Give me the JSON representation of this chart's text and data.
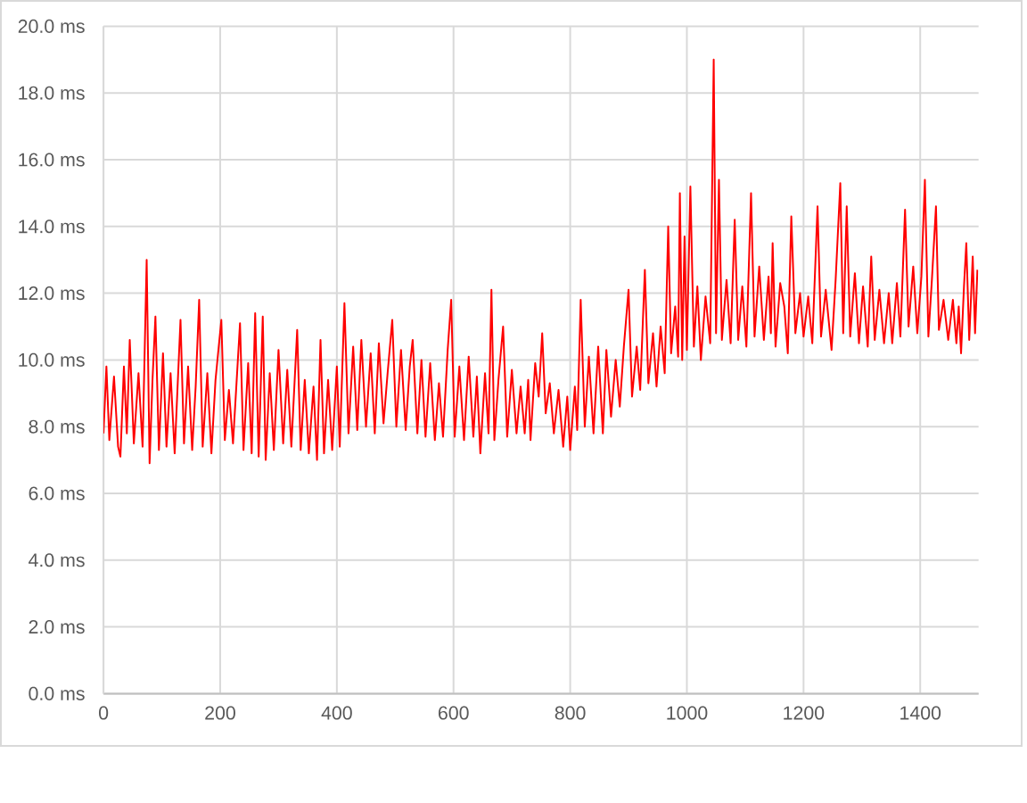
{
  "chart_data": {
    "type": "line",
    "x": [
      0,
      5,
      10,
      18,
      25,
      29,
      35,
      40,
      45,
      52,
      60,
      67,
      74,
      79,
      84,
      89,
      95,
      102,
      108,
      115,
      122,
      132,
      138,
      145,
      152,
      158,
      164,
      170,
      178,
      185,
      192,
      202,
      208,
      215,
      222,
      234,
      240,
      248,
      254,
      260,
      266,
      273,
      278,
      285,
      292,
      300,
      308,
      315,
      322,
      332,
      338,
      345,
      352,
      360,
      366,
      372,
      378,
      385,
      392,
      400,
      405,
      413,
      420,
      428,
      435,
      442,
      450,
      458,
      465,
      472,
      480,
      487,
      495,
      502,
      510,
      518,
      525,
      530,
      538,
      545,
      552,
      560,
      568,
      575,
      582,
      590,
      596,
      602,
      610,
      618,
      626,
      634,
      640,
      646,
      654,
      660,
      665,
      670,
      677,
      685,
      692,
      700,
      708,
      715,
      722,
      728,
      732,
      740,
      746,
      752,
      758,
      765,
      772,
      780,
      788,
      795,
      800,
      808,
      812,
      818,
      825,
      832,
      840,
      848,
      856,
      862,
      870,
      878,
      885,
      892,
      900,
      906,
      914,
      920,
      928,
      934,
      942,
      948,
      955,
      962,
      968,
      973,
      980,
      985,
      988,
      992,
      996,
      1000,
      1006,
      1012,
      1018,
      1024,
      1032,
      1040,
      1046,
      1050,
      1055,
      1060,
      1068,
      1075,
      1082,
      1088,
      1095,
      1102,
      1110,
      1116,
      1124,
      1132,
      1140,
      1144,
      1147,
      1152,
      1160,
      1167,
      1173,
      1179,
      1186,
      1194,
      1200,
      1208,
      1215,
      1224,
      1230,
      1238,
      1248,
      1255,
      1263,
      1268,
      1274,
      1280,
      1288,
      1295,
      1302,
      1310,
      1316,
      1322,
      1330,
      1338,
      1346,
      1352,
      1360,
      1366,
      1374,
      1380,
      1388,
      1395,
      1402,
      1408,
      1414,
      1420,
      1427,
      1432,
      1440,
      1448,
      1456,
      1462,
      1466,
      1470,
      1475,
      1479,
      1484,
      1490,
      1494,
      1498
    ],
    "series": [
      {
        "color": "#ff0000",
        "values": [
          7.8,
          9.8,
          7.6,
          9.5,
          7.4,
          7.1,
          9.8,
          7.8,
          10.6,
          7.5,
          9.6,
          7.4,
          13.0,
          6.9,
          9.4,
          11.3,
          7.3,
          10.2,
          7.4,
          9.6,
          7.2,
          11.2,
          7.5,
          9.8,
          7.3,
          9.2,
          11.8,
          7.4,
          9.6,
          7.2,
          9.4,
          11.2,
          7.6,
          9.1,
          7.5,
          11.1,
          7.3,
          9.9,
          7.2,
          11.4,
          7.1,
          11.3,
          7.0,
          9.6,
          7.3,
          10.3,
          7.5,
          9.7,
          7.4,
          10.9,
          7.3,
          9.4,
          7.2,
          9.2,
          7.0,
          10.6,
          7.2,
          9.4,
          7.3,
          9.8,
          7.4,
          11.7,
          7.8,
          10.4,
          7.9,
          10.6,
          8.0,
          10.2,
          7.8,
          10.5,
          8.1,
          9.6,
          11.2,
          8.0,
          10.3,
          7.9,
          9.8,
          10.6,
          7.8,
          10.0,
          7.7,
          9.9,
          7.6,
          9.3,
          7.7,
          10.3,
          11.8,
          7.7,
          9.8,
          7.6,
          10.1,
          7.7,
          9.5,
          7.2,
          9.6,
          7.8,
          12.1,
          7.6,
          9.4,
          11.0,
          7.7,
          9.7,
          7.8,
          9.2,
          7.8,
          9.4,
          7.6,
          9.9,
          8.9,
          10.8,
          8.4,
          9.3,
          7.8,
          9.1,
          7.4,
          8.9,
          7.3,
          9.2,
          7.9,
          11.8,
          8.0,
          10.1,
          7.8,
          10.4,
          7.8,
          10.3,
          8.3,
          10.0,
          8.6,
          10.4,
          12.1,
          8.9,
          10.4,
          9.1,
          12.7,
          9.3,
          10.8,
          9.2,
          11.0,
          9.6,
          14.0,
          10.2,
          11.6,
          10.1,
          15.0,
          10.0,
          13.7,
          10.3,
          15.2,
          10.4,
          12.2,
          10.0,
          11.9,
          10.5,
          19.0,
          10.8,
          15.4,
          10.6,
          12.4,
          10.5,
          14.2,
          10.6,
          12.2,
          10.4,
          15.0,
          10.7,
          12.8,
          10.6,
          12.5,
          10.8,
          13.5,
          10.4,
          12.3,
          11.6,
          10.2,
          14.3,
          10.8,
          12.0,
          10.7,
          11.9,
          10.5,
          14.6,
          10.7,
          12.1,
          10.3,
          12.4,
          15.3,
          10.8,
          14.6,
          10.7,
          12.6,
          10.5,
          12.2,
          10.4,
          13.1,
          10.6,
          12.1,
          10.5,
          12.0,
          10.5,
          12.3,
          10.7,
          14.5,
          11.0,
          12.8,
          10.8,
          12.5,
          15.4,
          10.7,
          12.4,
          14.6,
          10.9,
          11.8,
          10.6,
          11.8,
          10.5,
          11.6,
          10.2,
          12.2,
          13.5,
          10.6,
          13.1,
          10.8,
          12.7
        ]
      }
    ],
    "xlim": [
      0,
      1500
    ],
    "xticks": [
      0,
      200,
      400,
      600,
      800,
      1000,
      1200,
      1400
    ],
    "ylim": [
      0,
      20
    ],
    "yticks": [
      {
        "value": 0,
        "label": "0.0 ms"
      },
      {
        "value": 2,
        "label": "2.0 ms"
      },
      {
        "value": 4,
        "label": "4.0 ms"
      },
      {
        "value": 6,
        "label": "6.0 ms"
      },
      {
        "value": 8,
        "label": "8.0 ms"
      },
      {
        "value": 10,
        "label": "10.0 ms"
      },
      {
        "value": 12,
        "label": "12.0 ms"
      },
      {
        "value": 14,
        "label": "14.0 ms"
      },
      {
        "value": 16,
        "label": "16.0 ms"
      },
      {
        "value": 18,
        "label": "18.0 ms"
      },
      {
        "value": 20,
        "label": "20.0 ms"
      }
    ],
    "grid": true
  }
}
